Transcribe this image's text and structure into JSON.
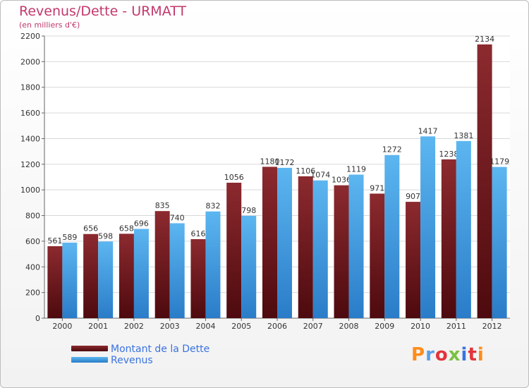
{
  "chart_data": {
    "type": "bar",
    "title": "Revenus/Dette - URMATT",
    "subtitle": "(en milliers d'€)",
    "categories": [
      "2000",
      "2001",
      "2002",
      "2003",
      "2004",
      "2005",
      "2006",
      "2007",
      "2008",
      "2009",
      "2010",
      "2011",
      "2012"
    ],
    "series": [
      {
        "name": "Montant de la Dette",
        "color": "#7a1a1f",
        "values": [
          561,
          656,
          658,
          835,
          616,
          1056,
          1180,
          1106,
          1036,
          971,
          907,
          1238,
          2134
        ]
      },
      {
        "name": "Revenus",
        "color": "#3f9ee3",
        "values": [
          589,
          598,
          696,
          740,
          832,
          798,
          1172,
          1074,
          1119,
          1272,
          1417,
          1381,
          1179
        ]
      }
    ],
    "ylim": [
      0,
      2200
    ],
    "yticks": [
      0,
      200,
      400,
      600,
      800,
      1000,
      1200,
      1400,
      1600,
      1800,
      2000,
      2200
    ],
    "grid": true,
    "legend_position": "bottom-left"
  },
  "logo": {
    "text": "Proxiti",
    "colors": [
      "#ff8c1a",
      "#5aa0e6",
      "#e3343c",
      "#7ac143",
      "#3a73e0",
      "#e3343c",
      "#ff8c1a"
    ]
  }
}
